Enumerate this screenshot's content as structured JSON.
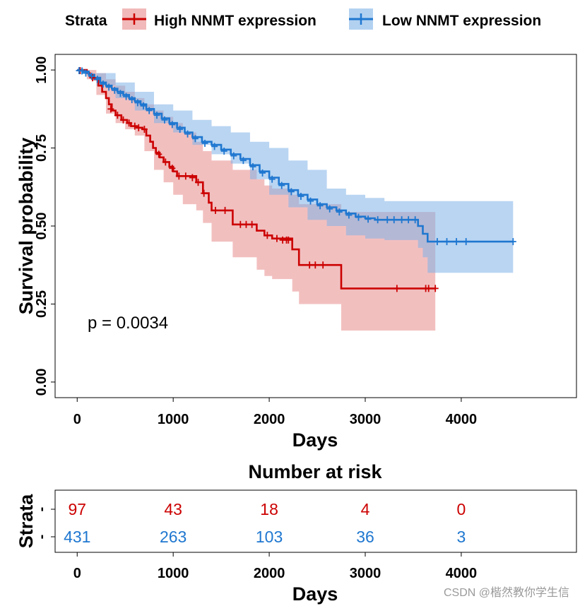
{
  "legend": {
    "title": "Strata",
    "items": [
      {
        "label": "High NNMT expression",
        "color": "#CC0000"
      },
      {
        "label": "Low NNMT expression",
        "color": "#1F77D0"
      }
    ]
  },
  "chart_data": {
    "type": "line",
    "subtype": "kaplan-meier",
    "xlabel": "Days",
    "ylabel": "Survival probability",
    "xlim": [
      -230,
      5200
    ],
    "ylim": [
      -0.05,
      1.05
    ],
    "x_ticks": [
      0,
      1000,
      2000,
      3000,
      4000
    ],
    "x_tick_labels": [
      "0",
      "1000",
      "2000",
      "3000",
      "4000"
    ],
    "y_ticks": [
      0.0,
      0.25,
      0.5,
      0.75,
      1.0
    ],
    "y_tick_labels": [
      "0.00",
      "0.25",
      "0.50",
      "0.75",
      "1.00"
    ],
    "annotation": "p = 0.0034",
    "series": [
      {
        "name": "High NNMT expression",
        "color": "#CC0000",
        "band_color": "#E88A8A",
        "steps": [
          [
            0,
            1.0
          ],
          [
            100,
            0.99
          ],
          [
            130,
            0.98
          ],
          [
            180,
            0.97
          ],
          [
            220,
            0.95
          ],
          [
            260,
            0.93
          ],
          [
            300,
            0.91
          ],
          [
            330,
            0.89
          ],
          [
            360,
            0.87
          ],
          [
            400,
            0.855
          ],
          [
            460,
            0.84
          ],
          [
            520,
            0.83
          ],
          [
            560,
            0.82
          ],
          [
            620,
            0.815
          ],
          [
            680,
            0.81
          ],
          [
            720,
            0.79
          ],
          [
            760,
            0.77
          ],
          [
            790,
            0.75
          ],
          [
            820,
            0.735
          ],
          [
            860,
            0.72
          ],
          [
            900,
            0.705
          ],
          [
            960,
            0.69
          ],
          [
            1000,
            0.675
          ],
          [
            1040,
            0.66
          ],
          [
            1240,
            0.64
          ],
          [
            1310,
            0.605
          ],
          [
            1370,
            0.575
          ],
          [
            1400,
            0.55
          ],
          [
            1620,
            0.505
          ],
          [
            1870,
            0.485
          ],
          [
            1950,
            0.47
          ],
          [
            2030,
            0.46
          ],
          [
            2240,
            0.425
          ],
          [
            2310,
            0.375
          ],
          [
            2750,
            0.3
          ],
          [
            3730,
            0.3
          ]
        ],
        "lower": [
          [
            0,
            1.0
          ],
          [
            100,
            0.97
          ],
          [
            200,
            0.92
          ],
          [
            300,
            0.86
          ],
          [
            400,
            0.83
          ],
          [
            500,
            0.81
          ],
          [
            600,
            0.79
          ],
          [
            700,
            0.74
          ],
          [
            800,
            0.68
          ],
          [
            900,
            0.64
          ],
          [
            1000,
            0.6
          ],
          [
            1100,
            0.57
          ],
          [
            1240,
            0.55
          ],
          [
            1310,
            0.51
          ],
          [
            1400,
            0.45
          ],
          [
            1620,
            0.4
          ],
          [
            1870,
            0.36
          ],
          [
            1950,
            0.34
          ],
          [
            2030,
            0.33
          ],
          [
            2240,
            0.29
          ],
          [
            2310,
            0.25
          ],
          [
            2750,
            0.165
          ],
          [
            3730,
            0.165
          ]
        ],
        "upper": [
          [
            0,
            1.0
          ],
          [
            100,
            1.0
          ],
          [
            200,
            0.99
          ],
          [
            300,
            0.97
          ],
          [
            400,
            0.95
          ],
          [
            500,
            0.93
          ],
          [
            600,
            0.91
          ],
          [
            700,
            0.89
          ],
          [
            800,
            0.87
          ],
          [
            900,
            0.85
          ],
          [
            1000,
            0.83
          ],
          [
            1100,
            0.8
          ],
          [
            1240,
            0.77
          ],
          [
            1310,
            0.74
          ],
          [
            1400,
            0.71
          ],
          [
            1620,
            0.68
          ],
          [
            1870,
            0.65
          ],
          [
            1950,
            0.63
          ],
          [
            2030,
            0.62
          ],
          [
            2240,
            0.6
          ],
          [
            2310,
            0.57
          ],
          [
            2750,
            0.545
          ],
          [
            3730,
            0.545
          ]
        ],
        "censored": [
          [
            30,
            0.998
          ],
          [
            160,
            0.975
          ],
          [
            350,
            0.875
          ],
          [
            420,
            0.855
          ],
          [
            480,
            0.84
          ],
          [
            540,
            0.83
          ],
          [
            600,
            0.82
          ],
          [
            640,
            0.815
          ],
          [
            700,
            0.81
          ],
          [
            850,
            0.73
          ],
          [
            920,
            0.705
          ],
          [
            990,
            0.685
          ],
          [
            1060,
            0.66
          ],
          [
            1130,
            0.66
          ],
          [
            1200,
            0.655
          ],
          [
            1260,
            0.64
          ],
          [
            1320,
            0.605
          ],
          [
            1440,
            0.55
          ],
          [
            1540,
            0.55
          ],
          [
            1700,
            0.505
          ],
          [
            1760,
            0.505
          ],
          [
            1820,
            0.505
          ],
          [
            1980,
            0.47
          ],
          [
            2080,
            0.46
          ],
          [
            2140,
            0.455
          ],
          [
            2180,
            0.455
          ],
          [
            2200,
            0.455
          ],
          [
            2420,
            0.375
          ],
          [
            2480,
            0.375
          ],
          [
            2560,
            0.375
          ],
          [
            3330,
            0.3
          ],
          [
            3630,
            0.3
          ],
          [
            3660,
            0.3
          ],
          [
            3730,
            0.3
          ]
        ]
      },
      {
        "name": "Low NNMT expression",
        "color": "#1F77D0",
        "band_color": "#7FB3E8",
        "steps": [
          [
            0,
            1.0
          ],
          [
            60,
            0.995
          ],
          [
            120,
            0.985
          ],
          [
            180,
            0.975
          ],
          [
            240,
            0.96
          ],
          [
            300,
            0.95
          ],
          [
            360,
            0.94
          ],
          [
            420,
            0.93
          ],
          [
            480,
            0.92
          ],
          [
            540,
            0.91
          ],
          [
            600,
            0.9
          ],
          [
            660,
            0.89
          ],
          [
            720,
            0.875
          ],
          [
            800,
            0.86
          ],
          [
            880,
            0.845
          ],
          [
            960,
            0.83
          ],
          [
            1040,
            0.815
          ],
          [
            1120,
            0.8
          ],
          [
            1200,
            0.785
          ],
          [
            1300,
            0.77
          ],
          [
            1400,
            0.76
          ],
          [
            1500,
            0.745
          ],
          [
            1600,
            0.73
          ],
          [
            1700,
            0.715
          ],
          [
            1800,
            0.695
          ],
          [
            1900,
            0.675
          ],
          [
            2000,
            0.655
          ],
          [
            2100,
            0.635
          ],
          [
            2200,
            0.615
          ],
          [
            2300,
            0.6
          ],
          [
            2400,
            0.585
          ],
          [
            2500,
            0.57
          ],
          [
            2600,
            0.56
          ],
          [
            2700,
            0.55
          ],
          [
            2800,
            0.54
          ],
          [
            2900,
            0.53
          ],
          [
            3000,
            0.525
          ],
          [
            3100,
            0.52
          ],
          [
            3200,
            0.52
          ],
          [
            3550,
            0.5
          ],
          [
            3600,
            0.475
          ],
          [
            3650,
            0.45
          ],
          [
            4540,
            0.45
          ]
        ],
        "lower": [
          [
            0,
            1.0
          ],
          [
            200,
            0.95
          ],
          [
            400,
            0.91
          ],
          [
            600,
            0.87
          ],
          [
            800,
            0.83
          ],
          [
            1000,
            0.8
          ],
          [
            1200,
            0.76
          ],
          [
            1400,
            0.73
          ],
          [
            1600,
            0.7
          ],
          [
            1800,
            0.65
          ],
          [
            2000,
            0.6
          ],
          [
            2200,
            0.56
          ],
          [
            2400,
            0.52
          ],
          [
            2600,
            0.5
          ],
          [
            2800,
            0.47
          ],
          [
            3000,
            0.46
          ],
          [
            3200,
            0.455
          ],
          [
            3550,
            0.43
          ],
          [
            3600,
            0.4
          ],
          [
            3650,
            0.35
          ],
          [
            4540,
            0.35
          ]
        ],
        "upper": [
          [
            0,
            1.0
          ],
          [
            200,
            0.99
          ],
          [
            400,
            0.96
          ],
          [
            600,
            0.93
          ],
          [
            800,
            0.89
          ],
          [
            1000,
            0.87
          ],
          [
            1200,
            0.84
          ],
          [
            1400,
            0.82
          ],
          [
            1600,
            0.8
          ],
          [
            1800,
            0.77
          ],
          [
            2000,
            0.75
          ],
          [
            2200,
            0.71
          ],
          [
            2400,
            0.68
          ],
          [
            2600,
            0.62
          ],
          [
            2800,
            0.6
          ],
          [
            3000,
            0.59
          ],
          [
            3200,
            0.58
          ],
          [
            3550,
            0.58
          ],
          [
            3600,
            0.58
          ],
          [
            3650,
            0.58
          ],
          [
            4540,
            0.58
          ]
        ],
        "censored": [
          [
            20,
            0.998
          ],
          [
            50,
            0.997
          ],
          [
            90,
            0.99
          ],
          [
            150,
            0.98
          ],
          [
            210,
            0.97
          ],
          [
            270,
            0.955
          ],
          [
            330,
            0.945
          ],
          [
            390,
            0.935
          ],
          [
            450,
            0.925
          ],
          [
            510,
            0.915
          ],
          [
            570,
            0.905
          ],
          [
            630,
            0.895
          ],
          [
            690,
            0.885
          ],
          [
            750,
            0.87
          ],
          [
            830,
            0.855
          ],
          [
            910,
            0.84
          ],
          [
            990,
            0.825
          ],
          [
            1070,
            0.81
          ],
          [
            1150,
            0.795
          ],
          [
            1230,
            0.78
          ],
          [
            1330,
            0.765
          ],
          [
            1430,
            0.755
          ],
          [
            1530,
            0.74
          ],
          [
            1630,
            0.725
          ],
          [
            1730,
            0.71
          ],
          [
            1830,
            0.69
          ],
          [
            1930,
            0.67
          ],
          [
            2030,
            0.65
          ],
          [
            2130,
            0.63
          ],
          [
            2230,
            0.61
          ],
          [
            2330,
            0.595
          ],
          [
            2430,
            0.58
          ],
          [
            2530,
            0.565
          ],
          [
            2630,
            0.555
          ],
          [
            2730,
            0.545
          ],
          [
            2830,
            0.535
          ],
          [
            2930,
            0.528
          ],
          [
            3030,
            0.522
          ],
          [
            3130,
            0.52
          ],
          [
            3230,
            0.52
          ],
          [
            3300,
            0.52
          ],
          [
            3380,
            0.52
          ],
          [
            3450,
            0.52
          ],
          [
            3520,
            0.52
          ],
          [
            3750,
            0.45
          ],
          [
            3850,
            0.45
          ],
          [
            3950,
            0.45
          ],
          [
            4050,
            0.45
          ],
          [
            4540,
            0.45
          ]
        ]
      }
    ]
  },
  "risk_table": {
    "title": "Number at risk",
    "ylabel": "Strata",
    "xlabel": "Days",
    "x_tick_labels": [
      "0",
      "1000",
      "2000",
      "3000",
      "4000"
    ],
    "row_labels": [
      "-",
      "-"
    ],
    "rows": [
      {
        "name": "High NNMT expression",
        "color": "#CC0000",
        "counts": [
          "97",
          "43",
          "18",
          "4",
          "0"
        ]
      },
      {
        "name": "Low NNMT expression",
        "color": "#1F77D0",
        "counts": [
          "431",
          "263",
          "103",
          "36",
          "3"
        ]
      }
    ]
  },
  "watermark": "CSDN @楷然教你学生信"
}
